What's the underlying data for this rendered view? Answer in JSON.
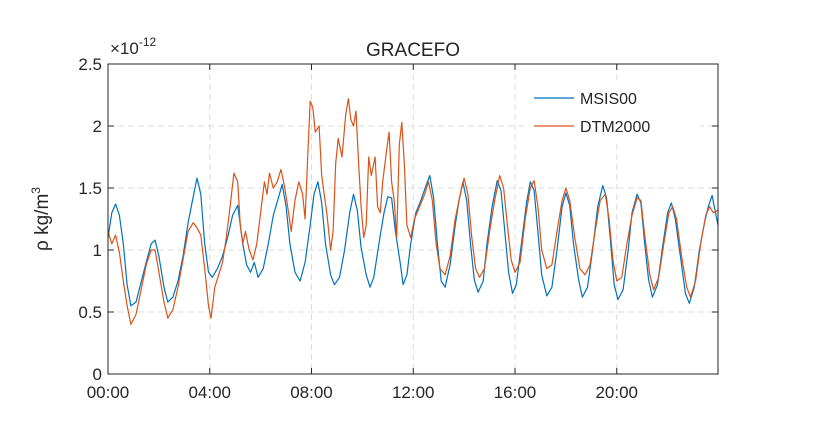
{
  "chart_data": {
    "type": "line",
    "title": "GRACEFO",
    "ylabel": "ρ  kg/m³",
    "ylabel_parts": {
      "main": "ρ  kg/m",
      "sup": "3"
    },
    "xlabel": "",
    "y_exponent": {
      "base": "×10",
      "power": "-12"
    },
    "xlim": [
      0,
      23.98
    ],
    "ylim": [
      0,
      2.5
    ],
    "x_ticks": [
      {
        "x": 0,
        "label": "00:00"
      },
      {
        "x": 4,
        "label": "04:00"
      },
      {
        "x": 8,
        "label": "08:00"
      },
      {
        "x": 12,
        "label": "12:00"
      },
      {
        "x": 16,
        "label": "16:00"
      },
      {
        "x": 20,
        "label": "20:00"
      }
    ],
    "y_ticks": [
      {
        "y": 0,
        "label": "0"
      },
      {
        "y": 0.5,
        "label": "0.5"
      },
      {
        "y": 1,
        "label": "1"
      },
      {
        "y": 1.5,
        "label": "1.5"
      },
      {
        "y": 2,
        "label": "2"
      },
      {
        "y": 2.5,
        "label": "2.5"
      }
    ],
    "grid": true,
    "legend_position": "top-right",
    "series": [
      {
        "name": "MSIS00",
        "color": "#0072BD",
        "points": [
          [
            0,
            1.1
          ],
          [
            0.15,
            1.3
          ],
          [
            0.3,
            1.37
          ],
          [
            0.45,
            1.28
          ],
          [
            0.6,
            1.05
          ],
          [
            0.75,
            0.72
          ],
          [
            0.9,
            0.55
          ],
          [
            1.1,
            0.58
          ],
          [
            1.3,
            0.74
          ],
          [
            1.5,
            0.9
          ],
          [
            1.7,
            1.05
          ],
          [
            1.85,
            1.08
          ],
          [
            2.0,
            0.95
          ],
          [
            2.2,
            0.7
          ],
          [
            2.35,
            0.58
          ],
          [
            2.55,
            0.62
          ],
          [
            2.75,
            0.75
          ],
          [
            2.95,
            0.95
          ],
          [
            3.15,
            1.22
          ],
          [
            3.35,
            1.43
          ],
          [
            3.5,
            1.58
          ],
          [
            3.65,
            1.45
          ],
          [
            3.8,
            1.05
          ],
          [
            3.95,
            0.82
          ],
          [
            4.1,
            0.78
          ],
          [
            4.3,
            0.85
          ],
          [
            4.5,
            0.95
          ],
          [
            4.7,
            1.1
          ],
          [
            4.9,
            1.28
          ],
          [
            5.1,
            1.36
          ],
          [
            5.3,
            1.05
          ],
          [
            5.45,
            0.88
          ],
          [
            5.6,
            0.82
          ],
          [
            5.75,
            0.9
          ],
          [
            5.9,
            0.78
          ],
          [
            6.1,
            0.85
          ],
          [
            6.3,
            1.05
          ],
          [
            6.5,
            1.28
          ],
          [
            6.7,
            1.42
          ],
          [
            6.85,
            1.53
          ],
          [
            7.0,
            1.35
          ],
          [
            7.15,
            1.05
          ],
          [
            7.35,
            0.82
          ],
          [
            7.55,
            0.75
          ],
          [
            7.75,
            0.9
          ],
          [
            7.95,
            1.2
          ],
          [
            8.1,
            1.45
          ],
          [
            8.25,
            1.55
          ],
          [
            8.4,
            1.38
          ],
          [
            8.55,
            1.05
          ],
          [
            8.75,
            0.8
          ],
          [
            8.9,
            0.72
          ],
          [
            9.1,
            0.78
          ],
          [
            9.3,
            1.0
          ],
          [
            9.5,
            1.3
          ],
          [
            9.65,
            1.45
          ],
          [
            9.8,
            1.32
          ],
          [
            9.95,
            1.02
          ],
          [
            10.15,
            0.8
          ],
          [
            10.3,
            0.7
          ],
          [
            10.45,
            0.78
          ],
          [
            10.65,
            1.05
          ],
          [
            10.85,
            1.3
          ],
          [
            11.0,
            1.43
          ],
          [
            11.15,
            1.42
          ],
          [
            11.3,
            1.15
          ],
          [
            11.5,
            0.88
          ],
          [
            11.6,
            0.72
          ],
          [
            11.75,
            0.8
          ],
          [
            11.9,
            1.05
          ],
          [
            12.1,
            1.3
          ],
          [
            12.3,
            1.4
          ],
          [
            12.5,
            1.52
          ],
          [
            12.65,
            1.6
          ],
          [
            12.8,
            1.42
          ],
          [
            12.95,
            1.05
          ],
          [
            13.1,
            0.75
          ],
          [
            13.25,
            0.7
          ],
          [
            13.45,
            0.88
          ],
          [
            13.65,
            1.2
          ],
          [
            13.8,
            1.4
          ],
          [
            13.95,
            1.55
          ],
          [
            14.1,
            1.4
          ],
          [
            14.25,
            1.05
          ],
          [
            14.4,
            0.76
          ],
          [
            14.55,
            0.66
          ],
          [
            14.75,
            0.75
          ],
          [
            14.9,
            1.05
          ],
          [
            15.1,
            1.35
          ],
          [
            15.3,
            1.56
          ],
          [
            15.45,
            1.48
          ],
          [
            15.6,
            1.15
          ],
          [
            15.75,
            0.82
          ],
          [
            15.9,
            0.65
          ],
          [
            16.05,
            0.72
          ],
          [
            16.25,
            1.05
          ],
          [
            16.45,
            1.38
          ],
          [
            16.6,
            1.55
          ],
          [
            16.75,
            1.48
          ],
          [
            16.9,
            1.15
          ],
          [
            17.05,
            0.8
          ],
          [
            17.25,
            0.63
          ],
          [
            17.45,
            0.7
          ],
          [
            17.65,
            1.0
          ],
          [
            17.85,
            1.35
          ],
          [
            18.0,
            1.46
          ],
          [
            18.15,
            1.36
          ],
          [
            18.3,
            1.05
          ],
          [
            18.5,
            0.76
          ],
          [
            18.65,
            0.62
          ],
          [
            18.85,
            0.7
          ],
          [
            19.05,
            1.0
          ],
          [
            19.25,
            1.35
          ],
          [
            19.45,
            1.52
          ],
          [
            19.6,
            1.42
          ],
          [
            19.75,
            1.08
          ],
          [
            19.9,
            0.72
          ],
          [
            20.05,
            0.6
          ],
          [
            20.25,
            0.68
          ],
          [
            20.45,
            1.0
          ],
          [
            20.6,
            1.3
          ],
          [
            20.8,
            1.45
          ],
          [
            20.95,
            1.38
          ],
          [
            21.1,
            1.05
          ],
          [
            21.25,
            0.76
          ],
          [
            21.4,
            0.62
          ],
          [
            21.6,
            0.72
          ],
          [
            21.8,
            1.02
          ],
          [
            22.0,
            1.3
          ],
          [
            22.15,
            1.38
          ],
          [
            22.3,
            1.25
          ],
          [
            22.5,
            0.95
          ],
          [
            22.7,
            0.65
          ],
          [
            22.85,
            0.57
          ],
          [
            23.05,
            0.7
          ],
          [
            23.25,
            1.0
          ],
          [
            23.45,
            1.22
          ],
          [
            23.6,
            1.35
          ],
          [
            23.75,
            1.44
          ],
          [
            23.88,
            1.3
          ],
          [
            23.98,
            1.2
          ]
        ]
      },
      {
        "name": "DTM2000",
        "color": "#D95319",
        "points": [
          [
            0,
            1.15
          ],
          [
            0.15,
            1.05
          ],
          [
            0.3,
            1.12
          ],
          [
            0.45,
            0.98
          ],
          [
            0.6,
            0.75
          ],
          [
            0.75,
            0.55
          ],
          [
            0.9,
            0.4
          ],
          [
            1.1,
            0.48
          ],
          [
            1.3,
            0.68
          ],
          [
            1.5,
            0.88
          ],
          [
            1.7,
            1.0
          ],
          [
            1.85,
            1.0
          ],
          [
            2.0,
            0.82
          ],
          [
            2.2,
            0.58
          ],
          [
            2.35,
            0.45
          ],
          [
            2.55,
            0.52
          ],
          [
            2.75,
            0.7
          ],
          [
            2.95,
            0.92
          ],
          [
            3.15,
            1.15
          ],
          [
            3.35,
            1.22
          ],
          [
            3.5,
            1.18
          ],
          [
            3.65,
            1.12
          ],
          [
            3.8,
            0.85
          ],
          [
            3.95,
            0.55
          ],
          [
            4.05,
            0.45
          ],
          [
            4.2,
            0.7
          ],
          [
            4.35,
            0.8
          ],
          [
            4.5,
            0.9
          ],
          [
            4.65,
            1.1
          ],
          [
            4.8,
            1.35
          ],
          [
            4.95,
            1.62
          ],
          [
            5.1,
            1.55
          ],
          [
            5.2,
            1.2
          ],
          [
            5.3,
            1.05
          ],
          [
            5.4,
            1.15
          ],
          [
            5.55,
            1.0
          ],
          [
            5.7,
            0.92
          ],
          [
            5.85,
            1.05
          ],
          [
            6.0,
            1.3
          ],
          [
            6.15,
            1.55
          ],
          [
            6.25,
            1.45
          ],
          [
            6.35,
            1.62
          ],
          [
            6.5,
            1.5
          ],
          [
            6.65,
            1.55
          ],
          [
            6.8,
            1.65
          ],
          [
            6.95,
            1.5
          ],
          [
            7.1,
            1.3
          ],
          [
            7.2,
            1.15
          ],
          [
            7.35,
            1.4
          ],
          [
            7.5,
            1.55
          ],
          [
            7.65,
            1.45
          ],
          [
            7.75,
            1.25
          ],
          [
            7.85,
            1.75
          ],
          [
            7.95,
            2.2
          ],
          [
            8.05,
            2.15
          ],
          [
            8.15,
            1.95
          ],
          [
            8.3,
            2.0
          ],
          [
            8.4,
            1.6
          ],
          [
            8.5,
            1.45
          ],
          [
            8.6,
            1.3
          ],
          [
            8.75,
            1.0
          ],
          [
            8.85,
            1.15
          ],
          [
            8.95,
            1.7
          ],
          [
            9.05,
            1.9
          ],
          [
            9.2,
            1.75
          ],
          [
            9.35,
            2.1
          ],
          [
            9.45,
            2.22
          ],
          [
            9.55,
            2.05
          ],
          [
            9.65,
            2.0
          ],
          [
            9.75,
            2.12
          ],
          [
            9.85,
            1.7
          ],
          [
            9.95,
            1.35
          ],
          [
            10.05,
            1.1
          ],
          [
            10.15,
            1.2
          ],
          [
            10.25,
            1.75
          ],
          [
            10.35,
            1.6
          ],
          [
            10.5,
            1.75
          ],
          [
            10.6,
            1.35
          ],
          [
            10.7,
            1.3
          ],
          [
            10.8,
            1.55
          ],
          [
            10.95,
            1.8
          ],
          [
            11.05,
            1.95
          ],
          [
            11.15,
            1.55
          ],
          [
            11.25,
            1.4
          ],
          [
            11.35,
            1.1
          ],
          [
            11.45,
            1.85
          ],
          [
            11.55,
            2.03
          ],
          [
            11.65,
            1.68
          ],
          [
            11.75,
            1.2
          ],
          [
            11.9,
            1.1
          ],
          [
            12.05,
            1.25
          ],
          [
            12.25,
            1.35
          ],
          [
            12.45,
            1.45
          ],
          [
            12.6,
            1.55
          ],
          [
            12.75,
            1.4
          ],
          [
            12.9,
            1.05
          ],
          [
            13.05,
            0.85
          ],
          [
            13.25,
            0.8
          ],
          [
            13.45,
            0.95
          ],
          [
            13.65,
            1.25
          ],
          [
            13.85,
            1.45
          ],
          [
            14.0,
            1.58
          ],
          [
            14.15,
            1.45
          ],
          [
            14.3,
            1.1
          ],
          [
            14.45,
            0.85
          ],
          [
            14.6,
            0.78
          ],
          [
            14.8,
            0.85
          ],
          [
            15.0,
            1.15
          ],
          [
            15.2,
            1.4
          ],
          [
            15.4,
            1.6
          ],
          [
            15.55,
            1.5
          ],
          [
            15.7,
            1.2
          ],
          [
            15.85,
            0.92
          ],
          [
            16.0,
            0.82
          ],
          [
            16.2,
            0.9
          ],
          [
            16.4,
            1.25
          ],
          [
            16.6,
            1.5
          ],
          [
            16.75,
            1.56
          ],
          [
            16.9,
            1.35
          ],
          [
            17.05,
            1.0
          ],
          [
            17.25,
            0.85
          ],
          [
            17.45,
            0.88
          ],
          [
            17.65,
            1.15
          ],
          [
            17.85,
            1.4
          ],
          [
            18.0,
            1.5
          ],
          [
            18.15,
            1.4
          ],
          [
            18.35,
            1.1
          ],
          [
            18.55,
            0.85
          ],
          [
            18.75,
            0.8
          ],
          [
            18.95,
            0.88
          ],
          [
            19.15,
            1.15
          ],
          [
            19.35,
            1.4
          ],
          [
            19.55,
            1.45
          ],
          [
            19.7,
            1.25
          ],
          [
            19.85,
            0.92
          ],
          [
            20.0,
            0.75
          ],
          [
            20.2,
            0.78
          ],
          [
            20.4,
            1.05
          ],
          [
            20.6,
            1.28
          ],
          [
            20.8,
            1.42
          ],
          [
            20.95,
            1.4
          ],
          [
            21.1,
            1.12
          ],
          [
            21.3,
            0.8
          ],
          [
            21.45,
            0.68
          ],
          [
            21.65,
            0.78
          ],
          [
            21.85,
            1.05
          ],
          [
            22.05,
            1.3
          ],
          [
            22.2,
            1.35
          ],
          [
            22.35,
            1.25
          ],
          [
            22.55,
            0.95
          ],
          [
            22.75,
            0.7
          ],
          [
            22.9,
            0.62
          ],
          [
            23.1,
            0.75
          ],
          [
            23.3,
            1.05
          ],
          [
            23.5,
            1.28
          ],
          [
            23.65,
            1.35
          ],
          [
            23.8,
            1.3
          ],
          [
            23.98,
            1.32
          ]
        ]
      }
    ]
  }
}
